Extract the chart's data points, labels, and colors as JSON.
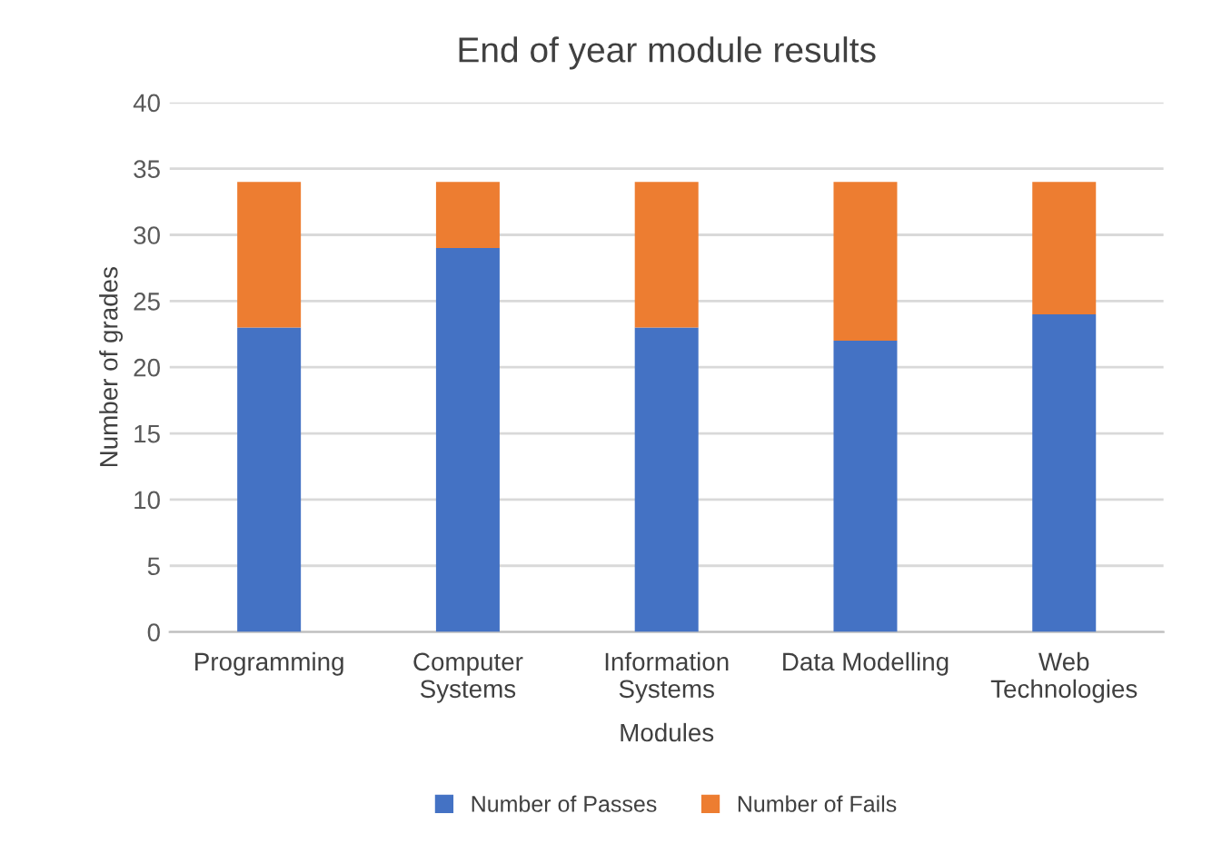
{
  "chart_data": {
    "type": "bar",
    "title": "End of year module results",
    "xlabel": "Modules",
    "ylabel": "Number of grades",
    "categories": [
      "Programming",
      "Computer Systems",
      "Information Systems",
      "Data Modelling",
      "Web Technologies"
    ],
    "stacked": true,
    "series": [
      {
        "name": "Number of Passes",
        "color": "#4472c4",
        "values": [
          23,
          29,
          23,
          22,
          24
        ]
      },
      {
        "name": "Number of Fails",
        "color": "#ed7d31",
        "values": [
          11,
          5,
          11,
          12,
          10
        ]
      }
    ],
    "ylim": [
      0,
      40
    ],
    "yticks": [
      0,
      5,
      10,
      15,
      20,
      25,
      30,
      35,
      40
    ],
    "grid": "y",
    "legend": "bottom"
  }
}
